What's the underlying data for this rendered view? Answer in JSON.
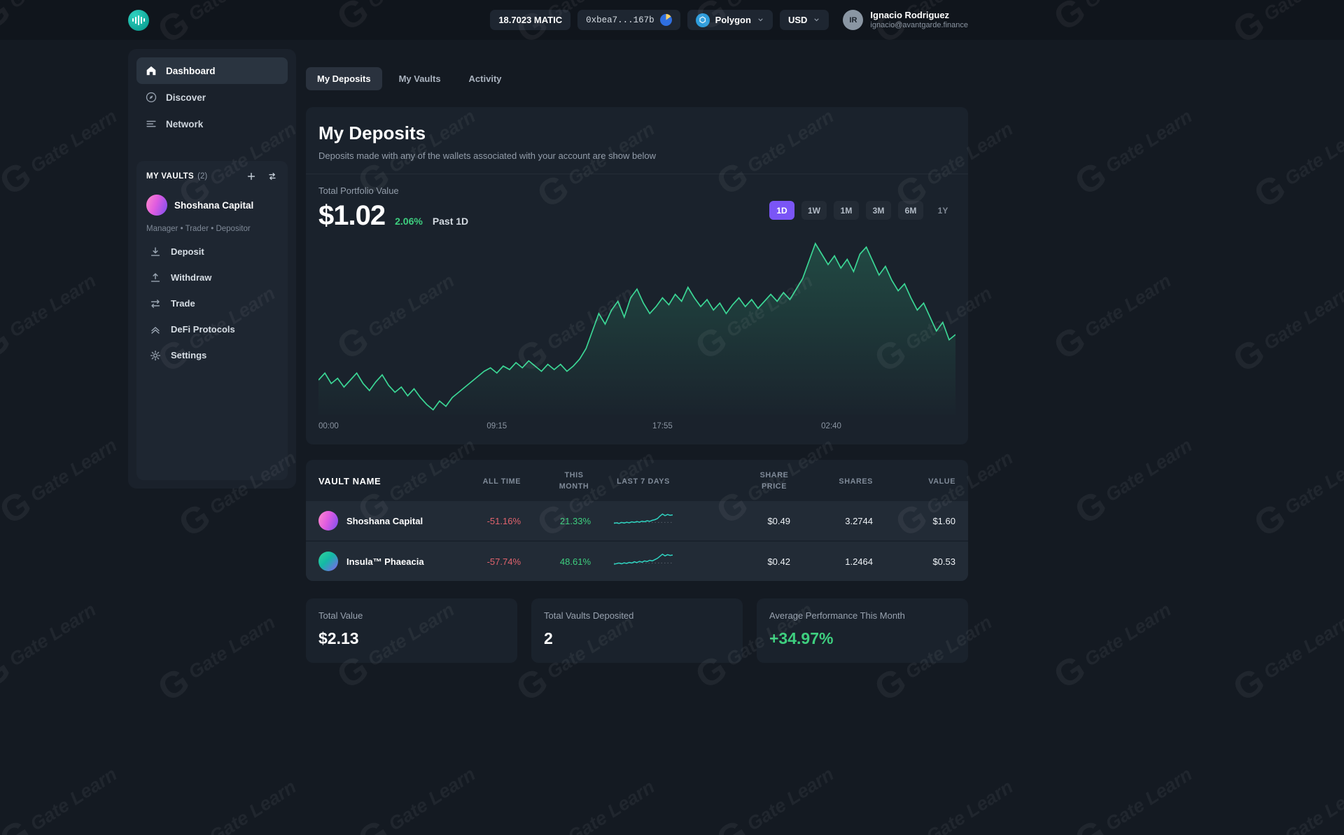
{
  "watermark": {
    "text": "Gate Learn"
  },
  "header": {
    "balance": "18.7023 MATIC",
    "wallet_address": "0xbea7...167b",
    "network_label": "Polygon",
    "currency": "USD",
    "user_initials": "IR",
    "user_name": "Ignacio Rodriguez",
    "user_email": "ignacio@avantgarde.finance"
  },
  "sidebar": {
    "nav": [
      {
        "label": "Dashboard",
        "active": true
      },
      {
        "label": "Discover",
        "active": false
      },
      {
        "label": "Network",
        "active": false
      }
    ],
    "vaults": {
      "title": "MY VAULTS",
      "count": "(2)",
      "vault_name": "Shoshana Capital",
      "roles": "Manager • Trader • Depositor",
      "actions": [
        {
          "label": "Deposit"
        },
        {
          "label": "Withdraw"
        },
        {
          "label": "Trade"
        },
        {
          "label": "DeFi Protocols"
        },
        {
          "label": "Settings"
        }
      ]
    }
  },
  "main": {
    "tabs": [
      {
        "label": "My Deposits",
        "active": true
      },
      {
        "label": "My Vaults",
        "active": false
      },
      {
        "label": "Activity",
        "active": false
      }
    ],
    "deposits": {
      "title": "My Deposits",
      "subtitle": "Deposits made with any of the wallets associated with your account are show below"
    },
    "portfolio": {
      "label": "Total Portfolio Value",
      "value": "$1.02",
      "change": "2.06%",
      "period": "Past 1D"
    },
    "ranges": [
      {
        "label": "1D",
        "active": true
      },
      {
        "label": "1W",
        "active": false
      },
      {
        "label": "1M",
        "active": false
      },
      {
        "label": "3M",
        "active": false
      },
      {
        "label": "6M",
        "active": false
      },
      {
        "label": "1Y",
        "active": false
      }
    ],
    "stats": [
      {
        "label": "Total Value",
        "value": "$2.13"
      },
      {
        "label": "Total Vaults Deposited",
        "value": "2"
      },
      {
        "label": "Average Performance This Month",
        "value": "+34.97%"
      }
    ]
  },
  "table": {
    "columns": [
      "Vault name",
      "All time",
      "This month",
      "Last 7 days",
      "Share price",
      "Shares",
      "Value"
    ],
    "rows": [
      {
        "name": "Shoshana Capital",
        "all_time": "-51.16%",
        "this_month": "21.33%",
        "share_price": "$0.49",
        "shares": "3.2744",
        "value": "$1.60"
      },
      {
        "name": "Insula™ Phaeacia",
        "all_time": "-57.74%",
        "this_month": "48.61%",
        "share_price": "$0.42",
        "shares": "1.2464",
        "value": "$0.53"
      }
    ]
  },
  "chart_data": {
    "type": "line",
    "title": "Total Portfolio Value - Past 1D",
    "legend": "none",
    "grid": false,
    "line_color": "#3bd695",
    "x_ticks": [
      {
        "label": "00:00",
        "pos": 0
      },
      {
        "label": "09:15",
        "pos": 28
      },
      {
        "label": "17:55",
        "pos": 54
      },
      {
        "label": "02:40",
        "pos": 80.5
      }
    ],
    "series": [
      {
        "name": "Total Portfolio Value",
        "values": [
          80,
          76,
          82,
          79,
          84,
          80,
          76,
          82,
          86,
          81,
          77,
          83,
          87,
          84,
          89,
          85,
          90,
          94,
          97,
          92,
          95,
          90,
          87,
          84,
          81,
          78,
          75,
          73,
          76,
          72,
          74,
          70,
          73,
          69,
          72,
          75,
          71,
          74,
          71,
          75,
          72,
          68,
          62,
          52,
          42,
          48,
          40,
          35,
          44,
          33,
          28,
          36,
          42,
          38,
          33,
          37,
          31,
          35,
          27,
          33,
          38,
          34,
          40,
          36,
          42,
          37,
          33,
          38,
          34,
          39,
          35,
          31,
          35,
          30,
          34,
          28,
          22,
          12,
          2,
          8,
          14,
          9,
          16,
          11,
          18,
          8,
          4,
          12,
          20,
          15,
          23,
          29,
          25,
          33,
          40,
          36,
          44,
          52,
          47,
          57,
          54
        ]
      }
    ],
    "sparklines": {
      "row0": [
        62,
        60,
        63,
        58,
        61,
        57,
        60,
        55,
        58,
        54,
        57,
        52,
        55,
        50,
        53,
        48,
        45,
        40,
        28,
        18,
        26,
        20,
        24,
        22
      ],
      "row1": [
        64,
        61,
        58,
        62,
        57,
        60,
        55,
        58,
        52,
        56,
        50,
        54,
        48,
        51,
        45,
        48,
        42,
        36,
        26,
        16,
        24,
        18,
        22,
        20
      ]
    }
  },
  "colors": {
    "background": "#141a22",
    "topbar": "#10151c",
    "panel": "#1a222c",
    "row": "#222b36",
    "accent_purple": "#7a55f6",
    "green": "#3ecf7f",
    "red": "#e0636d",
    "chart_line": "#3bd695",
    "sparkline": "#2fd4c1",
    "logo_teal": "#14b8a6"
  }
}
